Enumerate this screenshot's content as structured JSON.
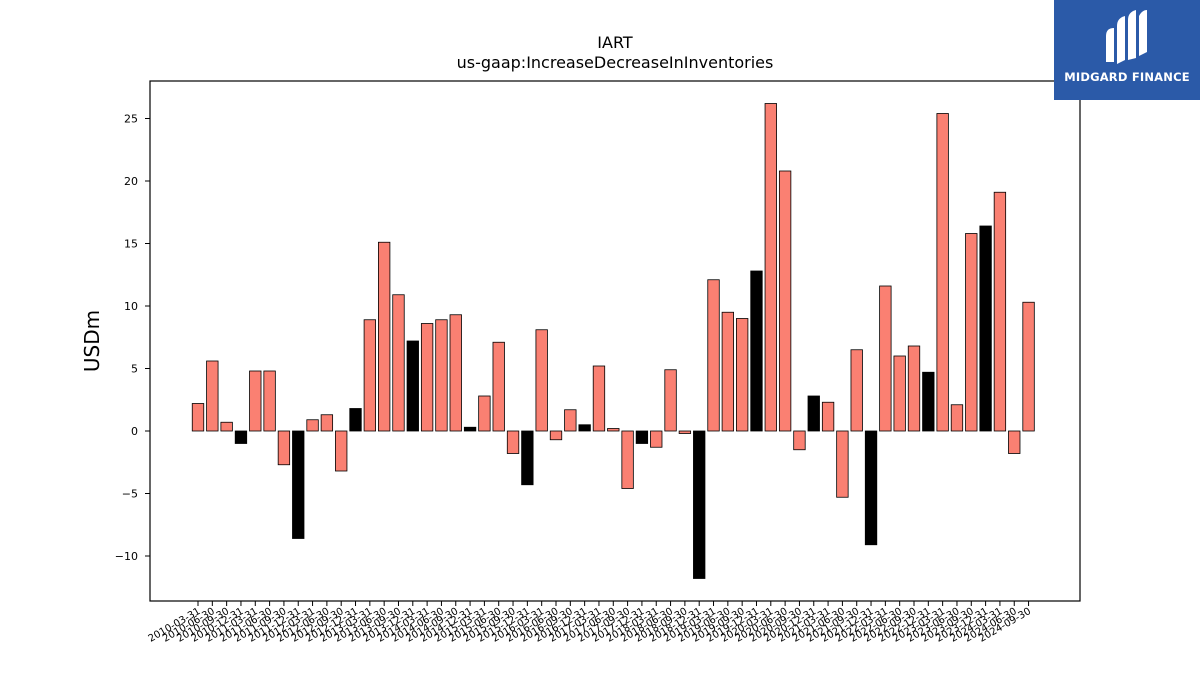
{
  "chart_data": {
    "type": "bar",
    "title": "IART",
    "subtitle": "us-gaap:IncreaseDecreaseInInventories",
    "xlabel": "",
    "ylabel": "USDm",
    "ylim": [
      -13.6,
      28.0
    ],
    "yticks": [
      -10,
      -5,
      0,
      5,
      10,
      15,
      20,
      25
    ],
    "grid": false,
    "colors": {
      "default": "#fa8072",
      "highlight": "#000000",
      "edge": "#000000"
    },
    "categories": [
      "2010-03-31",
      "2010-06-30",
      "2010-09-30",
      "2010-12-31",
      "2011-03-31",
      "2011-06-30",
      "2011-09-30",
      "2011-12-31",
      "2012-03-31",
      "2012-06-30",
      "2012-09-30",
      "2012-12-31",
      "2013-03-31",
      "2013-06-30",
      "2013-09-30",
      "2013-12-31",
      "2014-03-31",
      "2014-06-30",
      "2014-09-30",
      "2014-12-31",
      "2015-03-31",
      "2015-06-30",
      "2015-09-30",
      "2015-12-31",
      "2016-03-31",
      "2016-06-30",
      "2016-09-30",
      "2016-12-31",
      "2017-03-31",
      "2017-06-30",
      "2017-09-30",
      "2017-12-31",
      "2018-03-31",
      "2018-06-30",
      "2018-09-30",
      "2018-12-31",
      "2019-03-31",
      "2019-06-30",
      "2019-09-30",
      "2019-12-31",
      "2020-03-31",
      "2020-06-30",
      "2020-09-30",
      "2020-12-31",
      "2021-03-31",
      "2021-06-30",
      "2021-09-30",
      "2021-12-31",
      "2022-03-31",
      "2022-06-30",
      "2022-09-30",
      "2022-12-31",
      "2023-03-31",
      "2023-06-30",
      "2023-09-30",
      "2023-12-31",
      "2024-03-31",
      "2024-06-30",
      "2024-09-30"
    ],
    "values": [
      2.2,
      5.6,
      0.7,
      -1.0,
      4.8,
      4.8,
      -2.7,
      -8.6,
      0.9,
      1.3,
      -3.2,
      1.8,
      8.9,
      15.1,
      10.9,
      7.2,
      8.6,
      8.9,
      9.3,
      0.3,
      2.8,
      7.1,
      -1.8,
      -4.3,
      8.1,
      -0.7,
      1.7,
      0.5,
      5.2,
      0.2,
      -4.6,
      -1.0,
      -1.3,
      4.9,
      -0.2,
      -11.8,
      12.1,
      9.5,
      9.0,
      12.8,
      26.2,
      20.8,
      -1.5,
      2.8,
      2.3,
      -5.3,
      6.5,
      -9.1,
      11.6,
      6.0,
      6.8,
      4.7,
      25.4,
      2.1,
      15.8,
      16.4,
      19.1,
      -1.8,
      10.3
    ],
    "highlight": [
      3,
      7,
      11,
      15,
      19,
      23,
      27,
      31,
      35,
      39,
      43,
      47,
      51,
      55
    ]
  },
  "brand": {
    "name": "MIDGARD FINANCE",
    "background": "#2b5aa8",
    "icon": "midgard-logo-icon"
  }
}
